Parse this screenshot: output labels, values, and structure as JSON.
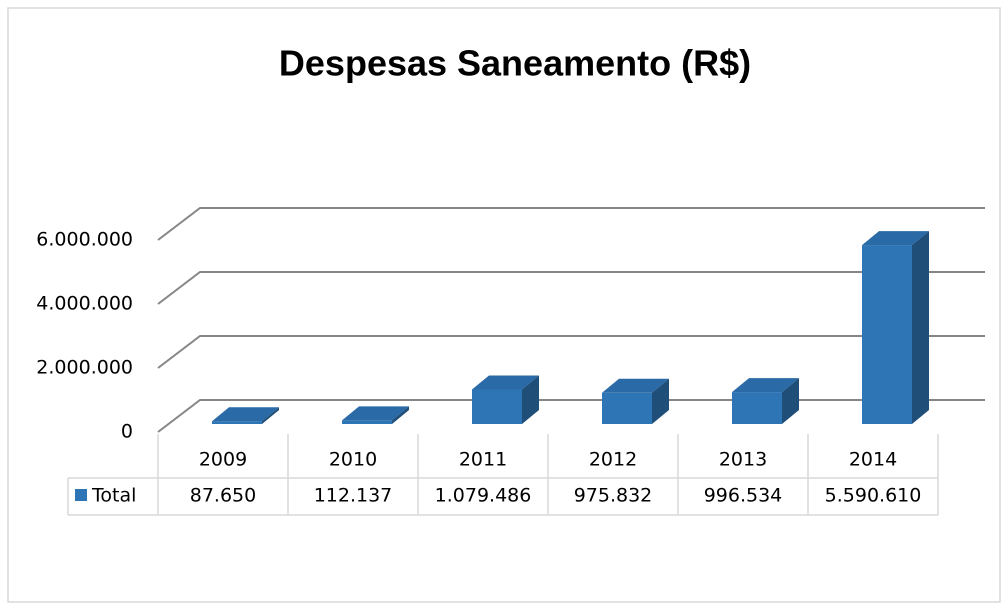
{
  "chart_data": {
    "type": "bar3d",
    "title": "Despesas Saneamento (R$)",
    "categories": [
      "2009",
      "2010",
      "2011",
      "2012",
      "2013",
      "2014"
    ],
    "series": [
      {
        "name": "Total",
        "color": "#2e75b6",
        "values": [
          87650,
          112137,
          1079486,
          975832,
          996534,
          5590610
        ],
        "value_labels": [
          "87.650",
          "112.137",
          "1.079.486",
          "975.832",
          "996.534",
          "5.590.610"
        ]
      }
    ],
    "ylim": [
      0,
      6000000
    ],
    "yticks": [
      0,
      {
        "value": 2000000,
        "label": "2.000.000"
      },
      {
        "value": 4000000,
        "label": "4.000.000"
      },
      {
        "value": 6000000,
        "label": "6.000.000"
      }
    ],
    "grid": true
  }
}
